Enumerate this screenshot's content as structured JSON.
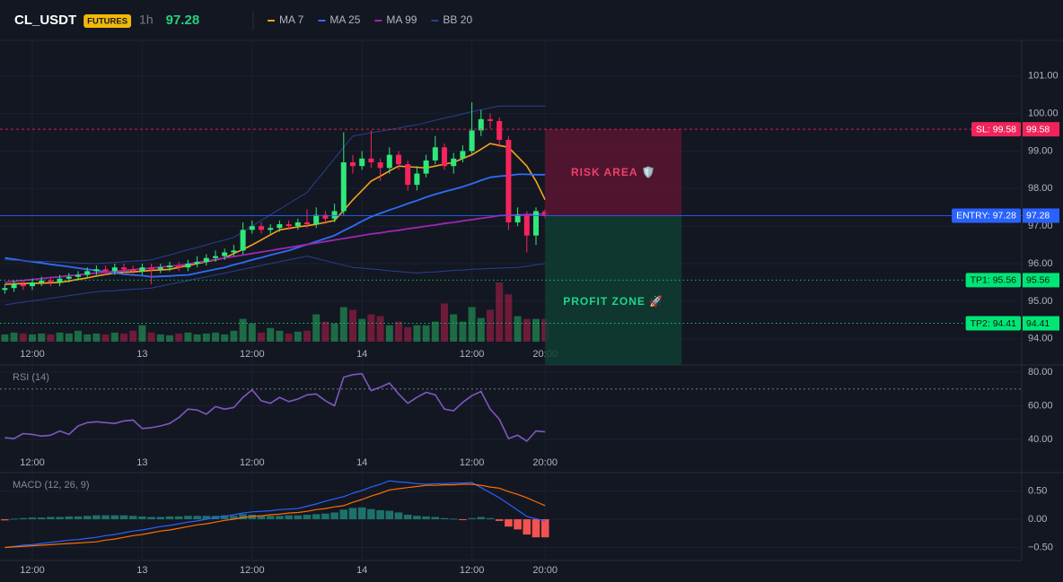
{
  "header": {
    "symbol": "CL_USDT",
    "badge": "FUTURES",
    "interval": "1h",
    "price": 97.28
  },
  "chart_data": [
    {
      "type": "candlestick",
      "categories": [
        null,
        null,
        null,
        "12:00",
        null,
        null,
        null,
        null,
        null,
        null,
        null,
        null,
        null,
        null,
        null,
        "13",
        null,
        null,
        null,
        null,
        null,
        null,
        null,
        null,
        null,
        null,
        null,
        "12:00",
        null,
        null,
        null,
        null,
        null,
        null,
        null,
        null,
        null,
        null,
        null,
        "14",
        null,
        null,
        null,
        null,
        null,
        null,
        null,
        null,
        null,
        null,
        null,
        "12:00",
        null,
        null,
        null,
        null,
        null,
        null,
        null,
        "20:00"
      ],
      "open": [
        95.3,
        95.35,
        95.45,
        95.4,
        95.5,
        95.55,
        95.5,
        95.6,
        95.65,
        95.7,
        95.8,
        95.85,
        95.8,
        95.9,
        95.85,
        95.8,
        95.9,
        95.85,
        95.9,
        95.95,
        95.9,
        96.0,
        96.05,
        96.15,
        96.2,
        96.3,
        96.35,
        96.9,
        97.0,
        96.9,
        96.95,
        97.05,
        97.0,
        97.1,
        97.05,
        97.3,
        97.2,
        97.4,
        98.7,
        98.6,
        98.8,
        98.7,
        98.55,
        98.9,
        98.65,
        98.1,
        98.4,
        98.75,
        99.1,
        98.6,
        98.8,
        99.0,
        99.55,
        99.85,
        99.8,
        99.3,
        97.1,
        97.3,
        96.75,
        97.4
      ],
      "high": [
        95.45,
        95.55,
        95.55,
        95.6,
        95.65,
        95.65,
        95.7,
        95.75,
        95.8,
        95.9,
        95.95,
        95.95,
        96.0,
        96.0,
        95.95,
        96.0,
        96.0,
        96.0,
        96.05,
        96.05,
        96.1,
        96.2,
        96.25,
        96.35,
        96.4,
        96.5,
        97.1,
        97.15,
        97.1,
        97.05,
        97.15,
        97.15,
        97.2,
        97.45,
        97.5,
        97.4,
        97.6,
        99.5,
        98.9,
        99.0,
        99.55,
        98.8,
        99.1,
        99.0,
        98.75,
        98.6,
        98.9,
        99.4,
        99.2,
        98.95,
        99.15,
        100.3,
        100.1,
        100.0,
        99.9,
        99.4,
        97.5,
        97.4,
        97.5,
        97.45
      ],
      "low": [
        95.2,
        95.25,
        95.3,
        95.3,
        95.4,
        95.4,
        95.4,
        95.5,
        95.55,
        95.6,
        95.7,
        95.7,
        95.7,
        95.75,
        95.7,
        95.7,
        95.45,
        95.75,
        95.8,
        95.8,
        95.8,
        95.9,
        95.95,
        96.05,
        96.1,
        96.2,
        96.25,
        96.8,
        96.8,
        96.8,
        96.85,
        96.9,
        96.9,
        96.95,
        96.95,
        97.05,
        97.1,
        97.3,
        98.4,
        98.5,
        98.55,
        98.2,
        98.4,
        98.5,
        97.95,
        97.95,
        98.3,
        98.65,
        98.5,
        98.4,
        98.7,
        98.9,
        99.4,
        99.6,
        99.1,
        96.9,
        97.0,
        96.3,
        96.5,
        97.2
      ],
      "close": [
        95.35,
        95.45,
        95.4,
        95.5,
        95.55,
        95.5,
        95.6,
        95.65,
        95.7,
        95.8,
        95.85,
        95.8,
        95.9,
        95.85,
        95.8,
        95.9,
        95.85,
        95.9,
        95.95,
        95.9,
        96.0,
        96.05,
        96.15,
        96.2,
        96.3,
        96.35,
        96.9,
        97.0,
        96.9,
        96.95,
        97.05,
        97.0,
        97.1,
        97.05,
        97.3,
        97.2,
        97.4,
        98.7,
        98.6,
        98.8,
        98.7,
        98.55,
        98.9,
        98.65,
        98.1,
        98.4,
        98.75,
        99.1,
        98.6,
        98.8,
        99.0,
        99.55,
        99.85,
        99.8,
        99.3,
        97.1,
        97.3,
        96.75,
        97.4,
        97.28
      ],
      "volume": [
        8,
        10,
        9,
        8,
        9,
        8,
        10,
        9,
        12,
        8,
        9,
        8,
        10,
        9,
        12,
        18,
        10,
        8,
        7,
        9,
        10,
        8,
        9,
        10,
        8,
        12,
        25,
        20,
        10,
        15,
        12,
        9,
        11,
        12,
        30,
        22,
        20,
        38,
        35,
        25,
        30,
        28,
        18,
        22,
        16,
        18,
        18,
        22,
        42,
        30,
        22,
        38,
        26,
        35,
        65,
        52,
        28,
        25,
        25,
        25
      ],
      "up_color": "#2ee87a",
      "down_color": "#f5245b",
      "series": [
        {
          "name": "MA 7",
          "color": "#f7a21b",
          "width": 1.6,
          "values": [
            95.45,
            95.46,
            95.47,
            95.48,
            95.48,
            95.49,
            95.5,
            95.54,
            95.58,
            95.62,
            95.67,
            95.71,
            95.75,
            95.77,
            95.78,
            95.8,
            95.82,
            95.83,
            95.85,
            95.9,
            95.95,
            96.0,
            96.05,
            96.1,
            96.15,
            96.27,
            96.38,
            96.5,
            96.63,
            96.77,
            96.9,
            96.94,
            96.98,
            97.01,
            97.05,
            97.1,
            97.15,
            97.42,
            97.7,
            97.95,
            98.2,
            98.33,
            98.47,
            98.6,
            98.58,
            98.57,
            98.55,
            98.6,
            98.65,
            98.7,
            98.8,
            98.9,
            99.05,
            99.2,
            99.15,
            99.1,
            98.85,
            98.6,
            98.2,
            97.7
          ]
        },
        {
          "name": "MA 25",
          "color": "#2f6df6",
          "width": 1.8,
          "values": [
            96.15,
            96.12,
            96.08,
            96.05,
            96.02,
            95.98,
            95.95,
            95.92,
            95.88,
            95.85,
            95.82,
            95.78,
            95.75,
            95.72,
            95.7,
            95.68,
            95.65,
            95.66,
            95.67,
            95.69,
            95.7,
            95.75,
            95.8,
            95.85,
            95.9,
            95.97,
            96.03,
            96.1,
            96.16,
            96.23,
            96.29,
            96.35,
            96.43,
            96.51,
            96.59,
            96.67,
            96.75,
            96.88,
            97.0,
            97.13,
            97.25,
            97.34,
            97.43,
            97.51,
            97.6,
            97.68,
            97.77,
            97.85,
            97.92,
            97.98,
            98.05,
            98.13,
            98.22,
            98.3,
            98.33,
            98.35,
            98.38,
            98.38,
            98.37,
            98.37
          ]
        },
        {
          "name": "MA 99",
          "color": "#9c27b0",
          "width": 1.8,
          "values": [
            95.5,
            95.53,
            95.55,
            95.58,
            95.6,
            95.63,
            95.65,
            95.68,
            95.7,
            95.73,
            95.75,
            95.77,
            95.79,
            95.82,
            95.84,
            95.86,
            95.88,
            95.91,
            95.93,
            95.95,
            95.99,
            96.03,
            96.07,
            96.11,
            96.15,
            96.19,
            96.23,
            96.27,
            96.31,
            96.35,
            96.39,
            96.43,
            96.47,
            96.51,
            96.55,
            96.59,
            96.63,
            96.67,
            96.71,
            96.75,
            96.79,
            96.82,
            96.86,
            96.89,
            96.93,
            96.96,
            97.0,
            97.03,
            97.07,
            97.1,
            97.14,
            97.17,
            97.21,
            97.24,
            97.28,
            97.29,
            97.3,
            97.31,
            97.32,
            97.33
          ]
        },
        {
          "name": "BB 20",
          "color": "#2a3f8f",
          "width": 1,
          "upper": [
            96.1,
            96.09,
            96.08,
            96.07,
            96.06,
            96.05,
            96.04,
            96.03,
            96.02,
            96.01,
            96.0,
            96.02,
            96.03,
            96.05,
            96.07,
            96.08,
            96.1,
            96.17,
            96.23,
            96.3,
            96.37,
            96.43,
            96.5,
            96.57,
            96.63,
            96.7,
            96.85,
            97.0,
            97.15,
            97.3,
            97.45,
            97.6,
            97.75,
            97.9,
            98.2,
            98.5,
            98.8,
            99.1,
            99.4,
            99.44,
            99.49,
            99.53,
            99.57,
            99.61,
            99.66,
            99.7,
            99.76,
            99.82,
            99.88,
            99.93,
            99.99,
            100.05,
            100.1,
            100.15,
            100.2,
            100.2,
            100.2,
            100.2,
            100.2,
            100.2
          ],
          "lower": [
            94.9,
            94.94,
            94.97,
            95.01,
            95.04,
            95.08,
            95.11,
            95.15,
            95.18,
            95.22,
            95.25,
            95.27,
            95.28,
            95.3,
            95.32,
            95.33,
            95.35,
            95.4,
            95.45,
            95.5,
            95.55,
            95.6,
            95.65,
            95.7,
            95.75,
            95.8,
            95.85,
            95.9,
            95.95,
            96.0,
            96.05,
            96.1,
            96.15,
            96.2,
            96.14,
            96.08,
            96.02,
            95.96,
            95.9,
            95.88,
            95.86,
            95.84,
            95.81,
            95.79,
            95.77,
            95.75,
            95.77,
            95.78,
            95.8,
            95.82,
            95.83,
            95.85,
            95.86,
            95.87,
            95.88,
            95.89,
            95.9,
            95.93,
            95.97,
            96.0
          ]
        }
      ],
      "levels": [
        {
          "label": "SL: 99.58",
          "value": 99.58,
          "color": "#f0245a",
          "text_color": "#ffffff",
          "style": "dashed"
        },
        {
          "label": "ENTRY: 97.28",
          "value": 97.28,
          "color": "#2962ff",
          "text_color": "#ffffff",
          "style": "solid"
        },
        {
          "label": "TP1: 95.56",
          "value": 95.56,
          "color": "#00e676",
          "text_color": "#0b1a12",
          "style": "dotted"
        },
        {
          "label": "TP2: 94.41",
          "value": 94.41,
          "color": "#00e676",
          "text_color": "#0b1a12",
          "style": "dotted"
        }
      ],
      "zones": [
        {
          "label": "RISK AREA 🛡️",
          "color": "#f23f6b",
          "fill": "#5a1530"
        },
        {
          "label": "PROFIT ZONE 🚀",
          "color": "#1fd68a",
          "fill": "#0f3d33"
        }
      ],
      "ylim": [
        93.3,
        101.95
      ],
      "yticks": [
        {
          "value": 94,
          "label": "94.00"
        },
        {
          "value": 95,
          "label": "95.00"
        },
        {
          "value": 96,
          "label": "96.00"
        },
        {
          "value": 97,
          "label": "97.00"
        },
        {
          "value": 98,
          "label": "98.00"
        },
        {
          "value": 99,
          "label": "99.00"
        },
        {
          "value": 100,
          "label": "100.00"
        },
        {
          "value": 101,
          "label": "101.00"
        }
      ],
      "grid": true
    },
    {
      "type": "line",
      "title": "RSI (14)",
      "color": "#7e57c2",
      "values": [
        41,
        40.5,
        43.5,
        43,
        42,
        42.5,
        45,
        43,
        48,
        50,
        50.5,
        50,
        49.5,
        51,
        51.5,
        46.5,
        47,
        48,
        49.5,
        53,
        58,
        57.5,
        55,
        59.5,
        58,
        59,
        65,
        69.5,
        63,
        61.5,
        65,
        62.5,
        64,
        66.5,
        67,
        63,
        60,
        77,
        78.5,
        79,
        69,
        71,
        73.5,
        67,
        61.5,
        65,
        68,
        66.5,
        58,
        57,
        62,
        66,
        68.5,
        58,
        52,
        40.5,
        42.5,
        39,
        45,
        44.5
      ],
      "level": 70,
      "ylim": [
        20.3,
        83.7
      ],
      "yticks": [
        {
          "value": 40,
          "label": "40.00"
        },
        {
          "value": 60,
          "label": "60.00"
        },
        {
          "value": 80,
          "label": "80.00"
        }
      ],
      "grid": true
    },
    {
      "type": "macd",
      "title": "MACD (12, 26, 9)",
      "histogram": [
        -0.02,
        0.01,
        0.02,
        0.03,
        0.03,
        0.04,
        0.04,
        0.05,
        0.05,
        0.06,
        0.07,
        0.07,
        0.07,
        0.07,
        0.06,
        0.05,
        0.04,
        0.04,
        0.05,
        0.05,
        0.06,
        0.06,
        0.06,
        0.06,
        0.07,
        0.06,
        0.09,
        0.08,
        0.07,
        0.06,
        0.06,
        0.07,
        0.07,
        0.08,
        0.09,
        0.1,
        0.12,
        0.17,
        0.2,
        0.21,
        0.18,
        0.16,
        0.15,
        0.12,
        0.08,
        0.06,
        0.05,
        0.04,
        0.02,
        0.01,
        -0.01,
        0.02,
        0.04,
        0.02,
        -0.03,
        -0.13,
        -0.18,
        -0.27,
        -0.32,
        -0.32
      ],
      "hist_up_color": "#1f8a7d",
      "hist_down_color": "#f05350",
      "series": [
        {
          "color": "#2962ff",
          "values": [
            -0.5,
            -0.48,
            -0.46,
            -0.45,
            -0.43,
            -0.41,
            -0.39,
            -0.37,
            -0.36,
            -0.34,
            -0.32,
            -0.29,
            -0.27,
            -0.24,
            -0.21,
            -0.19,
            -0.16,
            -0.13,
            -0.11,
            -0.08,
            -0.05,
            -0.03,
            0.0,
            0.03,
            0.05,
            0.08,
            0.11,
            0.13,
            0.14,
            0.15,
            0.17,
            0.18,
            0.19,
            0.23,
            0.27,
            0.32,
            0.36,
            0.4,
            0.46,
            0.51,
            0.57,
            0.62,
            0.68,
            0.66,
            0.65,
            0.63,
            0.62,
            0.63,
            0.63,
            0.64,
            0.64,
            0.65,
            0.56,
            0.47,
            0.38,
            0.27,
            0.16,
            0.05,
            0.01,
            -0.03
          ]
        },
        {
          "color": "#ff6d00",
          "values": [
            -0.5,
            -0.49,
            -0.48,
            -0.47,
            -0.46,
            -0.45,
            -0.44,
            -0.43,
            -0.42,
            -0.41,
            -0.4,
            -0.37,
            -0.35,
            -0.32,
            -0.29,
            -0.27,
            -0.24,
            -0.21,
            -0.19,
            -0.16,
            -0.13,
            -0.1,
            -0.08,
            -0.05,
            -0.02,
            0.0,
            0.03,
            0.05,
            0.06,
            0.08,
            0.09,
            0.11,
            0.12,
            0.14,
            0.17,
            0.19,
            0.22,
            0.24,
            0.3,
            0.35,
            0.41,
            0.46,
            0.52,
            0.54,
            0.56,
            0.58,
            0.6,
            0.6,
            0.61,
            0.61,
            0.62,
            0.62,
            0.6,
            0.57,
            0.55,
            0.49,
            0.44,
            0.38,
            0.31,
            0.24
          ]
        }
      ],
      "ylim": [
        -0.73,
        0.81
      ],
      "yticks": [
        {
          "value": -0.5,
          "label": "−0.50"
        },
        {
          "value": 0,
          "label": "0.00"
        },
        {
          "value": 0.5,
          "label": "0.50"
        }
      ],
      "grid": true
    }
  ]
}
